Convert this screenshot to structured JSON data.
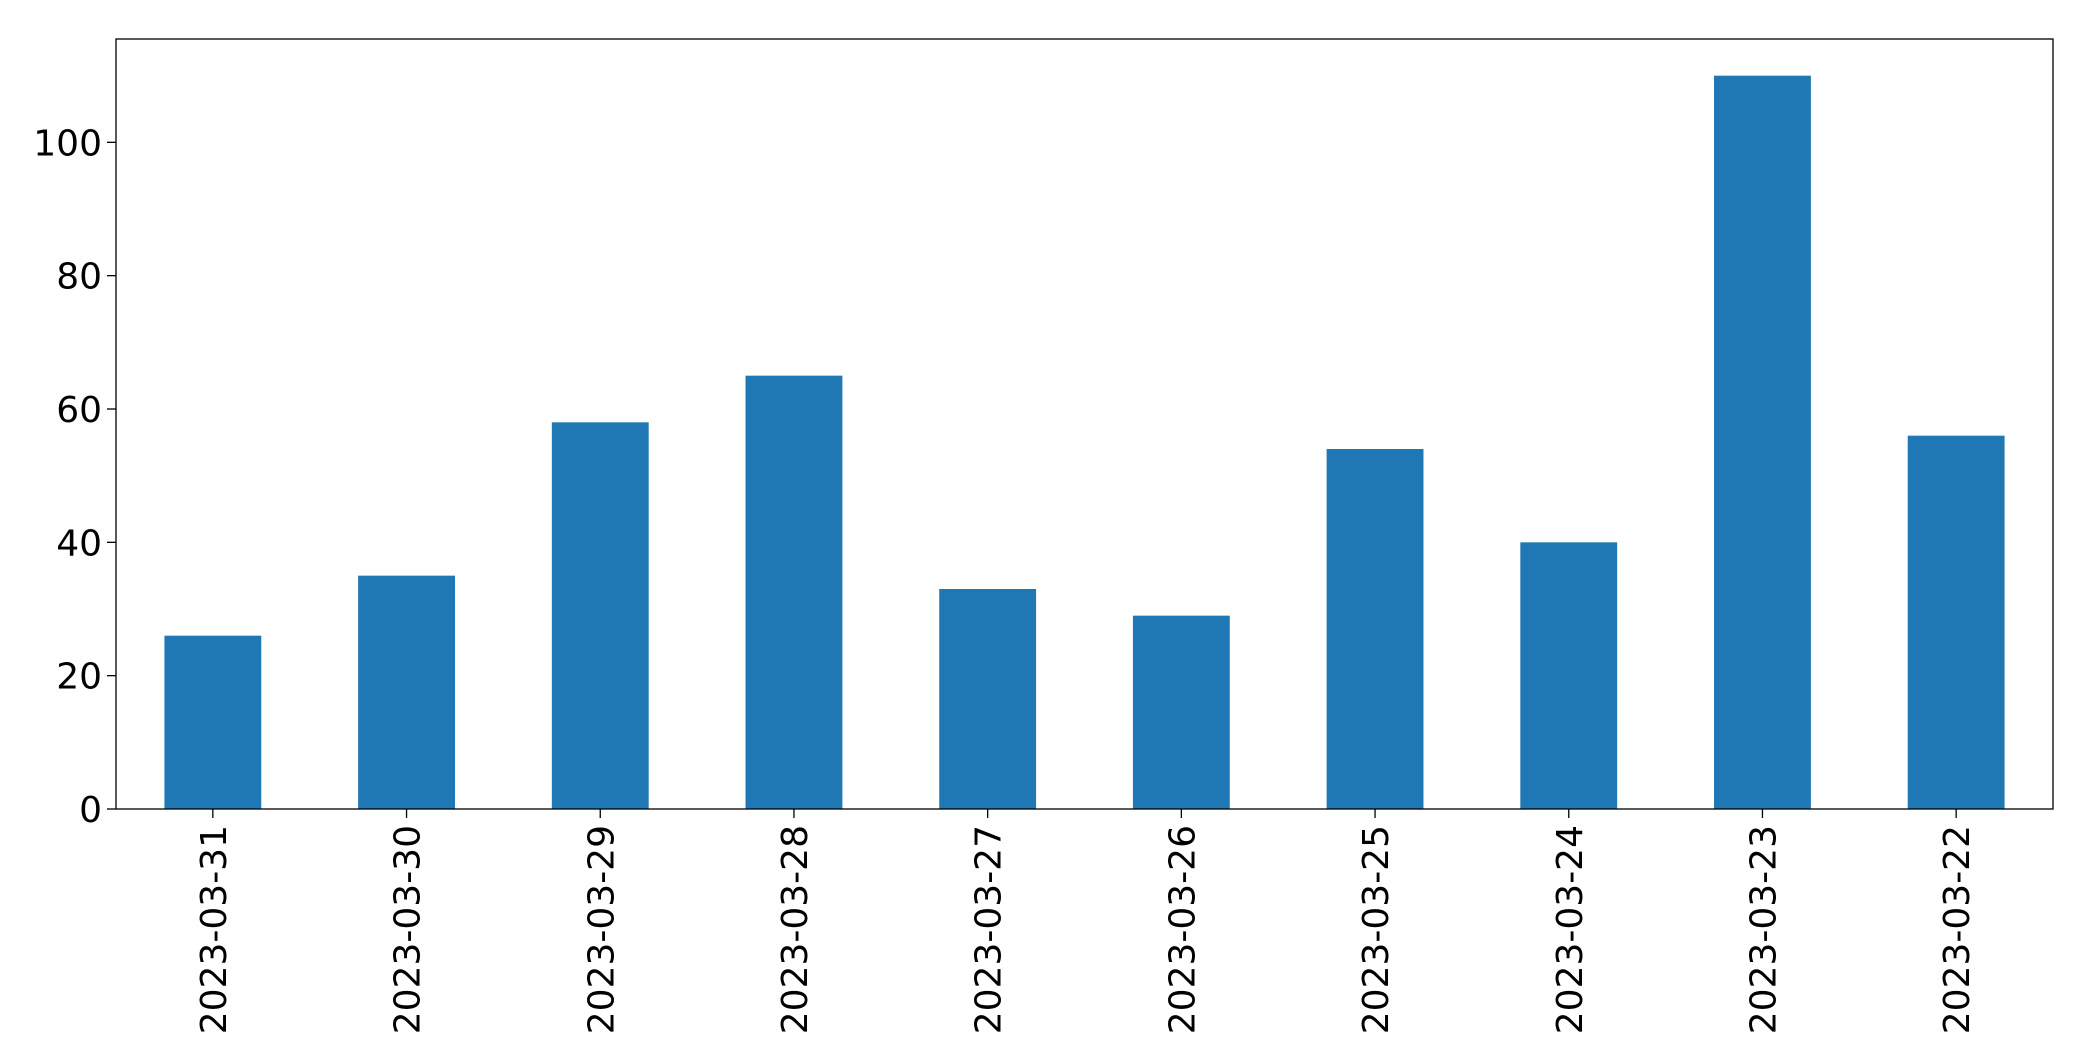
{
  "chart_data": {
    "type": "bar",
    "categories": [
      "2023-03-31",
      "2023-03-30",
      "2023-03-29",
      "2023-03-28",
      "2023-03-27",
      "2023-03-26",
      "2023-03-25",
      "2023-03-24",
      "2023-03-23",
      "2023-03-22"
    ],
    "values": [
      26,
      35,
      58,
      65,
      33,
      29,
      54,
      40,
      110,
      56
    ],
    "color": "#1f77b4",
    "ylim": [
      0,
      115.5
    ],
    "yticks": [
      0,
      20,
      40,
      60,
      80,
      100
    ],
    "grid": false
  }
}
